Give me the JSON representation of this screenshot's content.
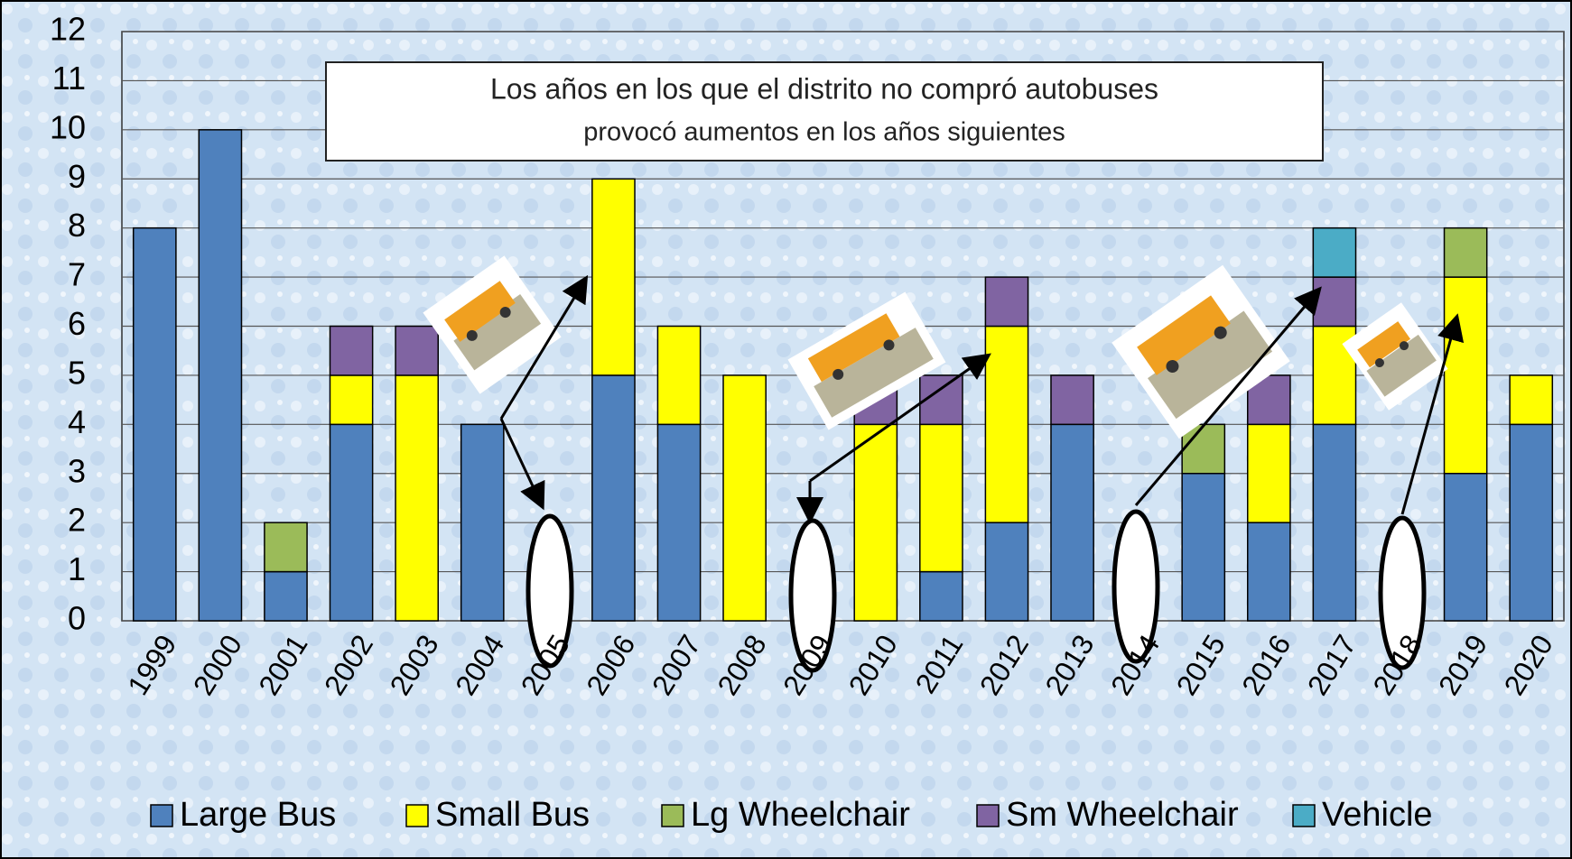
{
  "chart_data": {
    "type": "stacked_bar",
    "annotation": [
      "Los años en los que el distrito no compró autobuses",
      "provocó aumentos en los años siguientes"
    ],
    "categories": [
      "1999",
      "2000",
      "2001",
      "2002",
      "2003",
      "2004",
      "2005",
      "2006",
      "2007",
      "2008",
      "2009",
      "2010",
      "2011",
      "2012",
      "2013",
      "2014",
      "2015",
      "2016",
      "2017",
      "2018",
      "2019",
      "2020"
    ],
    "series": [
      {
        "name": "Large Bus",
        "color": "#4f81bd",
        "values": [
          8,
          10,
          1,
          4,
          0,
          4,
          0,
          5,
          4,
          0,
          0,
          0,
          1,
          2,
          4,
          0,
          3,
          2,
          4,
          0,
          3,
          4
        ]
      },
      {
        "name": "Small Bus",
        "color": "#ffff00",
        "values": [
          0,
          0,
          0,
          1,
          5,
          0,
          0,
          4,
          2,
          5,
          0,
          4,
          3,
          4,
          0,
          0,
          0,
          2,
          2,
          0,
          4,
          1
        ]
      },
      {
        "name": "Lg Wheelchair",
        "color": "#9bbb59",
        "values": [
          0,
          0,
          1,
          0,
          0,
          0,
          0,
          0,
          0,
          0,
          0,
          0,
          0,
          0,
          0,
          0,
          1,
          0,
          0,
          0,
          1,
          0
        ]
      },
      {
        "name": "Sm Wheelchair",
        "color": "#8064a2",
        "values": [
          0,
          0,
          0,
          1,
          1,
          0,
          0,
          0,
          0,
          0,
          0,
          1,
          1,
          1,
          1,
          0,
          0,
          1,
          1,
          0,
          0,
          0
        ]
      },
      {
        "name": "Vehicle",
        "color": "#4bacc6",
        "values": [
          0,
          0,
          0,
          0,
          0,
          0,
          0,
          0,
          0,
          0,
          0,
          0,
          0,
          0,
          0,
          0,
          0,
          0,
          1,
          0,
          0,
          0
        ]
      }
    ],
    "ylim": [
      0,
      12
    ],
    "yticks": [
      0,
      1,
      2,
      3,
      4,
      5,
      6,
      7,
      8,
      9,
      10,
      11,
      12
    ],
    "grid": true,
    "legend": "bottom"
  }
}
